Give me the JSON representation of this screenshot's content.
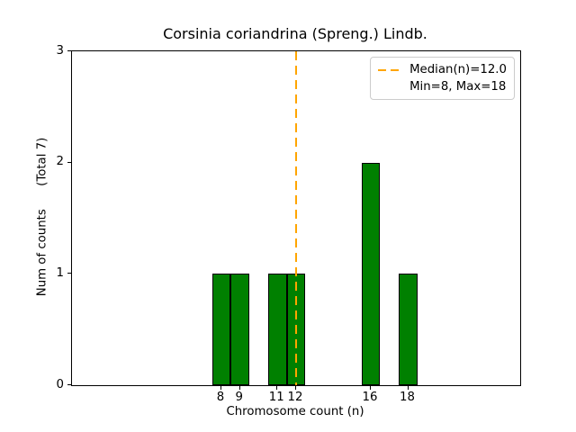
{
  "chart_data": {
    "type": "bar",
    "title": "Corsinia coriandrina (Spreng.) Lindb.",
    "xlabel": "Chromosome count (n)",
    "ylabel": "Num of counts      (Total 7)",
    "x": [
      8,
      9,
      11,
      12,
      16,
      18
    ],
    "values": [
      1,
      1,
      1,
      1,
      2,
      1
    ],
    "bar_width_units": 1,
    "xlim": [
      0,
      24
    ],
    "ylim": [
      0,
      3
    ],
    "xticks": [
      8,
      9,
      11,
      12,
      16,
      18
    ],
    "yticks": [
      0,
      1,
      2,
      3
    ],
    "total_count": 7,
    "bar_color": "#008000",
    "bar_edge_color": "#000000",
    "median_line": {
      "x": 12.0,
      "color": "#FFA500",
      "style": "dashed"
    },
    "legend": {
      "position": "upper right",
      "entries": [
        "Median(n)=12.0",
        "Min=8, Max=18"
      ]
    },
    "grid": false,
    "background": "#ffffff"
  }
}
